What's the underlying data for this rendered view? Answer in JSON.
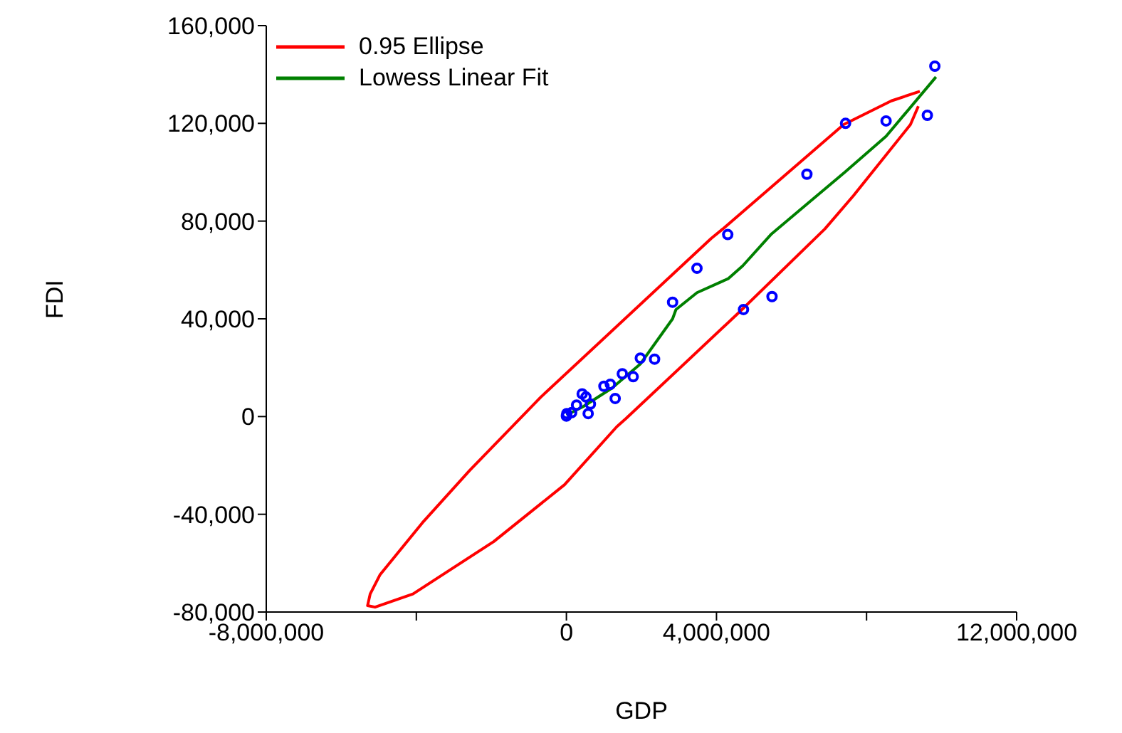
{
  "chart_data": {
    "type": "scatter",
    "xlabel": "GDP",
    "ylabel": "FDI",
    "xlim": [
      -8000000,
      12000000
    ],
    "ylim": [
      -80000,
      160000
    ],
    "xticks": [
      {
        "value": -8000000,
        "label": "-8,000,000"
      },
      {
        "value": -4000000,
        "label": null
      },
      {
        "value": 0,
        "label": "0"
      },
      {
        "value": 4000000,
        "label": "4,000,000"
      },
      {
        "value": 8000000,
        "label": null
      },
      {
        "value": 12000000,
        "label": "12,000,000"
      }
    ],
    "yticks": [
      {
        "value": -80000,
        "label": "-80,000"
      },
      {
        "value": -40000,
        "label": "-40,000"
      },
      {
        "value": 0,
        "label": "0"
      },
      {
        "value": 40000,
        "label": "40,000"
      },
      {
        "value": 80000,
        "label": "80,000"
      },
      {
        "value": 120000,
        "label": "120,000"
      },
      {
        "value": 160000,
        "label": "160,000"
      }
    ],
    "grid": false,
    "legend": "top left",
    "marker": "circle",
    "series": [
      {
        "type": "line",
        "name": "0.95 Ellipse",
        "color": "#ff0000",
        "line_style": "solid",
        "marker": "none",
        "x": [
          9420000,
          8660000,
          7390000,
          4170000,
          3860000,
          -680000,
          -2580000,
          -3840000,
          -4970000,
          -5230000,
          -5300000,
          -5100000,
          -4090000,
          -1940000,
          -50000,
          1340000,
          1590000,
          4620000,
          6890000,
          7650000,
          9170000,
          9380000
        ],
        "values": [
          133100,
          129200,
          119500,
          76800,
          72900,
          8000,
          -22100,
          -43500,
          -64800,
          -72600,
          -77400,
          -78000,
          -72600,
          -51200,
          -27900,
          -4200,
          -800,
          42900,
          76800,
          90400,
          119500,
          127000
        ]
      },
      {
        "type": "line",
        "name": "Lowess Linear Fit",
        "color": "#008000",
        "line_style": "solid",
        "marker": "none",
        "x": [
          0,
          450000,
          1210000,
          1970000,
          2830000,
          2920000,
          3480000,
          4320000,
          4700000,
          5450000,
          6400000,
          7420000,
          8520000,
          9850000
        ],
        "values": [
          600,
          4100,
          11600,
          21500,
          40000,
          43800,
          50700,
          56500,
          61700,
          74500,
          86800,
          100000,
          114700,
          139000
        ]
      },
      {
        "color": "#0000ff",
        "x": [
          0,
          10000,
          140000,
          270000,
          420000,
          520000,
          580000,
          640000,
          1000000,
          1170000,
          1300000,
          1490000,
          1780000,
          1970000,
          2350000,
          2830000,
          3480000,
          4300000,
          4720000,
          5480000,
          6410000,
          7440000,
          8520000,
          9620000,
          9820000
        ],
        "values": [
          200,
          1200,
          1600,
          4700,
          9300,
          8000,
          1200,
          5100,
          12400,
          13200,
          7400,
          17500,
          16300,
          23900,
          23500,
          46800,
          60700,
          74500,
          43800,
          49100,
          99200,
          120000,
          121000,
          123300,
          143400
        ]
      }
    ]
  }
}
